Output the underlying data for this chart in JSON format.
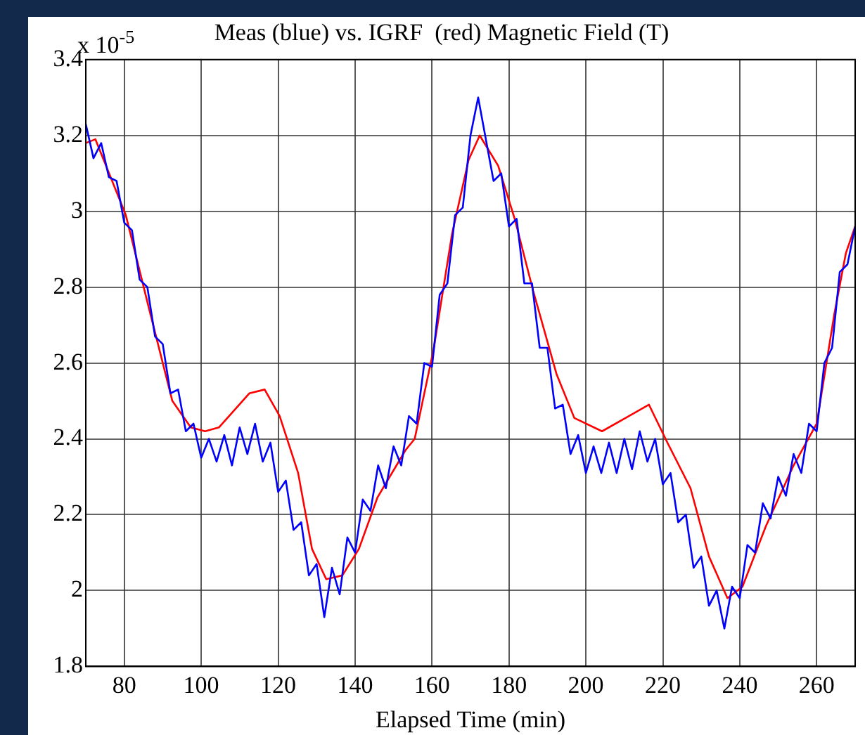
{
  "chart_data": {
    "type": "line",
    "title": "Meas (blue) vs. IGRF  (red) Magnetic Field (T)",
    "xlabel": "Elapsed Time (min)",
    "annotations": [
      "x 10$^{-5}$"
    ],
    "xlim": [
      70,
      270
    ],
    "xticks": [
      80,
      100,
      120,
      140,
      160,
      180,
      200,
      220,
      240,
      260
    ],
    "ylim": [
      1.8,
      3.4
    ],
    "yticks": [
      1.8,
      2,
      2.2,
      2.4,
      2.6,
      2.8,
      3,
      3.2,
      3.4
    ],
    "grid": true,
    "legend": false,
    "marker": "none",
    "line_style": "solid",
    "series": [
      {
        "color": "#0000ff",
        "x": [
          70,
          72,
          74,
          76,
          78,
          80,
          82,
          84,
          86,
          88,
          90,
          92,
          94,
          96,
          98,
          100,
          102,
          104,
          106,
          108,
          110,
          112,
          114,
          116,
          118,
          120,
          122,
          124,
          126,
          128,
          130,
          132,
          134,
          136,
          138,
          140,
          142,
          144,
          146,
          148,
          150,
          152,
          154,
          156,
          158,
          160,
          162,
          164,
          166,
          168,
          170,
          172,
          174,
          176,
          178,
          180,
          182,
          184,
          186,
          188,
          190,
          192,
          194,
          196,
          198,
          200,
          202,
          204,
          206,
          208,
          210,
          212,
          214,
          216,
          218,
          220,
          222,
          224,
          226,
          228,
          230,
          232,
          234,
          236,
          238,
          240,
          242,
          244,
          246,
          248,
          250,
          252,
          254,
          256,
          258,
          260,
          262,
          264,
          266,
          268,
          270
        ],
        "values": [
          3.23,
          3.14,
          3.18,
          3.09,
          3.08,
          2.97,
          2.95,
          2.82,
          2.8,
          2.67,
          2.65,
          2.52,
          2.53,
          2.42,
          2.44,
          2.35,
          2.4,
          2.34,
          2.41,
          2.33,
          2.43,
          2.36,
          2.44,
          2.34,
          2.39,
          2.26,
          2.29,
          2.16,
          2.18,
          2.04,
          2.07,
          1.93,
          2.06,
          1.99,
          2.14,
          2.1,
          2.24,
          2.21,
          2.33,
          2.27,
          2.38,
          2.33,
          2.46,
          2.44,
          2.6,
          2.59,
          2.78,
          2.81,
          2.99,
          3.01,
          3.2,
          3.3,
          3.19,
          3.08,
          3.1,
          2.96,
          2.98,
          2.81,
          2.81,
          2.64,
          2.64,
          2.48,
          2.49,
          2.36,
          2.41,
          2.31,
          2.38,
          2.31,
          2.39,
          2.31,
          2.4,
          2.32,
          2.42,
          2.34,
          2.4,
          2.28,
          2.31,
          2.18,
          2.2,
          2.06,
          2.09,
          1.96,
          2,
          1.9,
          2.01,
          1.98,
          2.12,
          2.1,
          2.23,
          2.19,
          2.3,
          2.25,
          2.36,
          2.31,
          2.44,
          2.42,
          2.6,
          2.64,
          2.84,
          2.86,
          2.96
        ]
      },
      {
        "color": "#ff0000",
        "x": [
          70,
          72.5,
          80.4,
          86.4,
          92.5,
          97.3,
          101,
          104.6,
          112.5,
          116.5,
          120.4,
          125.2,
          128.8,
          132.5,
          136.7,
          141,
          145.8,
          153.1,
          155.5,
          160.4,
          165.2,
          169.5,
          172.4,
          177.2,
          181.5,
          186.3,
          192.4,
          197,
          204.2,
          210.3,
          216.4,
          221.2,
          227.2,
          232,
          236.8,
          240.7,
          246.8,
          254,
          260,
          264.6,
          267.6,
          270
        ],
        "values": [
          3.18,
          3.19,
          2.99,
          2.745,
          2.5,
          2.43,
          2.42,
          2.43,
          2.52,
          2.53,
          2.46,
          2.31,
          2.11,
          2.03,
          2.04,
          2.11,
          2.245,
          2.37,
          2.4,
          2.635,
          2.94,
          3.135,
          3.2,
          3.12,
          2.98,
          2.79,
          2.57,
          2.455,
          2.42,
          2.455,
          2.49,
          2.39,
          2.27,
          2.09,
          1.98,
          2.01,
          2.17,
          2.33,
          2.44,
          2.73,
          2.89,
          2.96
        ]
      }
    ]
  }
}
